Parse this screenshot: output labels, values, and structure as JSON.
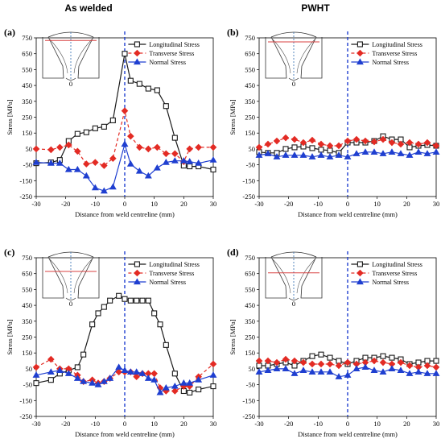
{
  "column_titles": {
    "left": "As welded",
    "right": "PWHT"
  },
  "colors": {
    "longitudinal": "#1a1a1a",
    "transverse": "#e32b24",
    "normal": "#1f3fd0",
    "centreline": "#1f3fd0",
    "inset_centre": "#2b6ab0",
    "inset_line": "#d84040"
  },
  "chart_data": [
    {
      "panel": "(a)",
      "type": "line",
      "xlabel": "Distance from weld centreline (mm)",
      "ylabel": "Stress [MPa]",
      "xlim": [
        -30,
        30
      ],
      "ylim": [
        -250,
        750
      ],
      "xticks": [
        -30,
        -20,
        -10,
        0,
        10,
        20,
        30
      ],
      "yticks": [
        -250,
        -150,
        -50,
        50,
        150,
        250,
        350,
        450,
        550,
        650,
        750
      ],
      "inset_label": "0",
      "legend_position": "top-right",
      "series": [
        {
          "name": "Longitudinal Stress",
          "marker": "square",
          "x": [
            -30,
            -25,
            -22,
            -19,
            -16,
            -13,
            -10,
            -7,
            -4,
            0,
            2,
            5,
            8,
            11,
            14,
            17,
            20,
            22,
            25,
            30
          ],
          "y": [
            -40,
            -35,
            -20,
            100,
            145,
            155,
            180,
            190,
            230,
            650,
            480,
            460,
            430,
            420,
            320,
            120,
            -55,
            -60,
            -60,
            -80
          ]
        },
        {
          "name": "Transverse Stress",
          "marker": "diamond",
          "x": [
            -30,
            -25,
            -22,
            -19,
            -16,
            -13,
            -10,
            -7,
            -4,
            0,
            2,
            5,
            8,
            11,
            14,
            17,
            20,
            22,
            25,
            30
          ],
          "y": [
            50,
            45,
            60,
            75,
            35,
            -45,
            -35,
            -55,
            -10,
            290,
            130,
            60,
            50,
            60,
            20,
            20,
            -30,
            50,
            60,
            60
          ]
        },
        {
          "name": "Normal Stress",
          "marker": "triangle",
          "x": [
            -30,
            -25,
            -22,
            -19,
            -16,
            -13,
            -10,
            -7,
            -4,
            0,
            2,
            5,
            8,
            11,
            14,
            17,
            20,
            22,
            25,
            30
          ],
          "y": [
            -35,
            -40,
            -40,
            -80,
            -80,
            -120,
            -195,
            -215,
            -190,
            80,
            -45,
            -90,
            -120,
            -70,
            -35,
            -25,
            -25,
            -30,
            -40,
            -20
          ]
        }
      ]
    },
    {
      "panel": "(b)",
      "type": "line",
      "xlabel": "Distance from weld centreline (mm)",
      "ylabel": "Stress [MPa]",
      "xlim": [
        -30,
        30
      ],
      "ylim": [
        -250,
        750
      ],
      "xticks": [
        -30,
        -20,
        -10,
        0,
        10,
        20,
        30
      ],
      "yticks": [
        -250,
        -150,
        -50,
        50,
        150,
        250,
        350,
        450,
        550,
        650,
        750
      ],
      "inset_label": "0",
      "legend_position": "top-right",
      "series": [
        {
          "name": "Longitudinal Stress",
          "marker": "square",
          "x": [
            -30,
            -27,
            -24,
            -21,
            -18,
            -15,
            -12,
            -9,
            -6,
            -3,
            0,
            3,
            6,
            9,
            12,
            15,
            18,
            21,
            24,
            27,
            30
          ],
          "y": [
            30,
            25,
            25,
            50,
            60,
            65,
            55,
            45,
            40,
            25,
            90,
            90,
            90,
            100,
            130,
            110,
            110,
            60,
            70,
            75,
            70
          ]
        },
        {
          "name": "Transverse Stress",
          "marker": "diamond",
          "x": [
            -30,
            -27,
            -24,
            -21,
            -18,
            -15,
            -12,
            -9,
            -6,
            -3,
            0,
            3,
            6,
            9,
            12,
            15,
            18,
            21,
            24,
            27,
            30
          ],
          "y": [
            60,
            80,
            100,
            120,
            110,
            90,
            105,
            80,
            70,
            70,
            100,
            110,
            100,
            95,
            110,
            90,
            80,
            90,
            80,
            90,
            70
          ]
        },
        {
          "name": "Normal Stress",
          "marker": "triangle",
          "x": [
            -30,
            -27,
            -24,
            -21,
            -18,
            -15,
            -12,
            -9,
            -6,
            -3,
            0,
            3,
            6,
            9,
            12,
            15,
            18,
            21,
            24,
            27,
            30
          ],
          "y": [
            10,
            20,
            0,
            10,
            10,
            10,
            0,
            10,
            0,
            10,
            0,
            20,
            30,
            30,
            20,
            30,
            20,
            10,
            30,
            20,
            30
          ]
        }
      ]
    },
    {
      "panel": "(c)",
      "type": "line",
      "xlabel": "Distance from weld centreline (mm)",
      "ylabel": "Stress [MPa]",
      "xlim": [
        -30,
        30
      ],
      "ylim": [
        -250,
        750
      ],
      "xticks": [
        -30,
        -20,
        -10,
        0,
        10,
        20,
        30
      ],
      "yticks": [
        -250,
        -150,
        -50,
        50,
        150,
        250,
        350,
        450,
        550,
        650,
        750
      ],
      "inset_label": "0",
      "legend_position": "top-right",
      "series": [
        {
          "name": "Longitudinal Stress",
          "marker": "square",
          "x": [
            -30,
            -25,
            -22,
            -19,
            -16,
            -14,
            -11,
            -9,
            -7,
            -5,
            -2,
            0,
            2,
            4,
            6,
            8,
            10,
            12,
            14,
            17,
            20,
            22,
            25,
            30
          ],
          "y": [
            -40,
            -20,
            20,
            40,
            60,
            140,
            330,
            400,
            440,
            480,
            510,
            490,
            480,
            480,
            480,
            480,
            400,
            330,
            200,
            20,
            -90,
            -100,
            -80,
            -60
          ]
        },
        {
          "name": "Transverse Stress",
          "marker": "diamond",
          "x": [
            -30,
            -25,
            -22,
            -19,
            -16,
            -14,
            -11,
            -9,
            -7,
            -5,
            -2,
            0,
            2,
            4,
            6,
            8,
            10,
            12,
            14,
            17,
            20,
            22,
            25,
            30
          ],
          "y": [
            60,
            110,
            50,
            50,
            10,
            -30,
            -20,
            -40,
            -30,
            -10,
            30,
            30,
            30,
            0,
            20,
            20,
            20,
            -70,
            -90,
            -90,
            -60,
            -60,
            0,
            80
          ]
        },
        {
          "name": "Normal Stress",
          "marker": "triangle",
          "x": [
            -30,
            -25,
            -22,
            -19,
            -16,
            -14,
            -11,
            -9,
            -7,
            -5,
            -2,
            0,
            2,
            4,
            6,
            8,
            10,
            12,
            14,
            17,
            20,
            22,
            25,
            30
          ],
          "y": [
            10,
            30,
            40,
            20,
            -10,
            -30,
            -40,
            -50,
            -30,
            -10,
            60,
            40,
            30,
            30,
            20,
            -10,
            -20,
            -100,
            -70,
            -60,
            -40,
            -40,
            -20,
            10
          ]
        }
      ]
    },
    {
      "panel": "(d)",
      "type": "line",
      "xlabel": "Distance from weld centreline (mm)",
      "ylabel": "Stress [MPa]",
      "xlim": [
        -30,
        30
      ],
      "ylim": [
        -250,
        750
      ],
      "xticks": [
        -30,
        -20,
        -10,
        0,
        10,
        20,
        30
      ],
      "yticks": [
        -250,
        -150,
        -50,
        50,
        150,
        250,
        350,
        450,
        550,
        650,
        750
      ],
      "inset_label": "0",
      "legend_position": "top-right",
      "series": [
        {
          "name": "Longitudinal Stress",
          "marker": "square",
          "x": [
            -30,
            -27,
            -24,
            -21,
            -18,
            -15,
            -12,
            -9,
            -6,
            -3,
            0,
            3,
            6,
            9,
            12,
            15,
            18,
            21,
            24,
            27,
            30
          ],
          "y": [
            70,
            70,
            80,
            90,
            70,
            100,
            130,
            140,
            120,
            100,
            80,
            100,
            120,
            120,
            130,
            120,
            110,
            80,
            90,
            100,
            100
          ]
        },
        {
          "name": "Transverse Stress",
          "marker": "diamond",
          "x": [
            -30,
            -27,
            -24,
            -21,
            -18,
            -15,
            -12,
            -9,
            -6,
            -3,
            0,
            3,
            6,
            9,
            12,
            15,
            18,
            21,
            24,
            27,
            30
          ],
          "y": [
            100,
            100,
            90,
            110,
            100,
            90,
            80,
            80,
            80,
            70,
            90,
            80,
            90,
            100,
            90,
            80,
            90,
            70,
            60,
            70,
            60
          ]
        },
        {
          "name": "Normal Stress",
          "marker": "triangle",
          "x": [
            -30,
            -27,
            -24,
            -21,
            -18,
            -15,
            -12,
            -9,
            -6,
            -3,
            0,
            3,
            6,
            9,
            12,
            15,
            18,
            21,
            24,
            27,
            30
          ],
          "y": [
            30,
            40,
            50,
            50,
            20,
            40,
            30,
            30,
            30,
            0,
            10,
            50,
            60,
            40,
            30,
            50,
            40,
            20,
            30,
            20,
            20
          ]
        }
      ]
    }
  ]
}
